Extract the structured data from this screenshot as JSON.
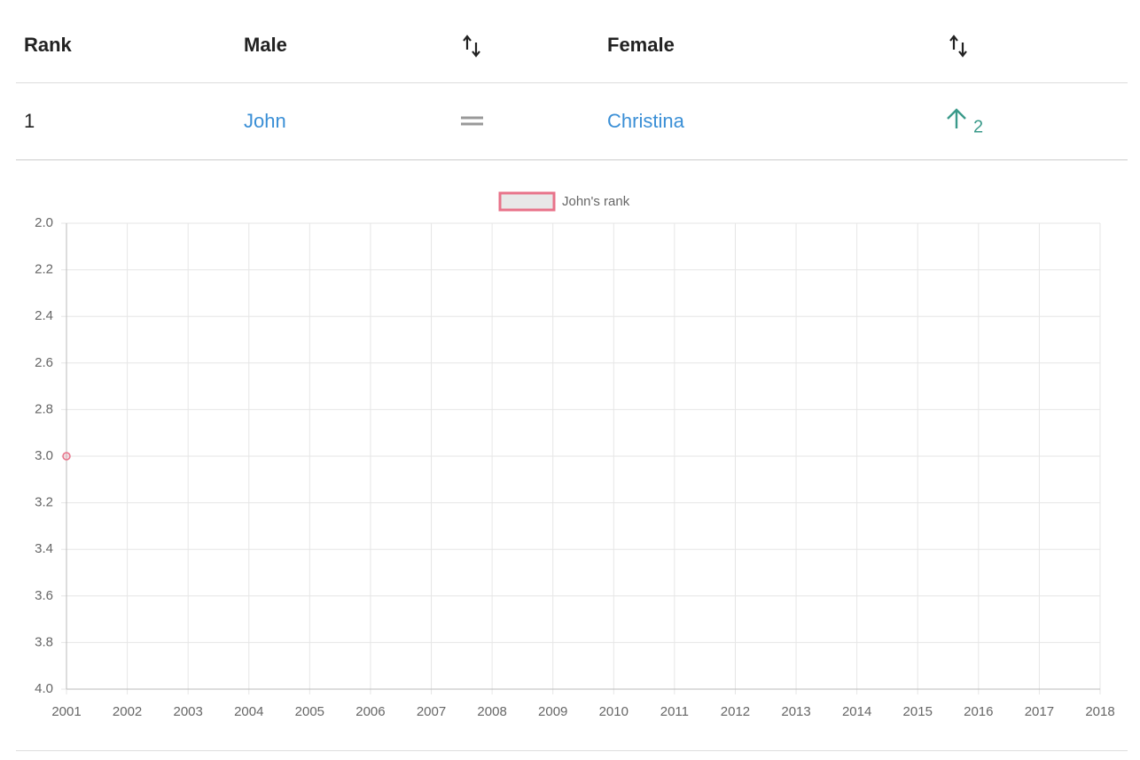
{
  "table": {
    "columns": [
      "Rank",
      "Male",
      "Female"
    ],
    "rows": [
      {
        "rank": "1",
        "male": "John",
        "female": "Christina",
        "female_change": "2"
      }
    ]
  },
  "chart_data": {
    "type": "line",
    "categories": [
      "2001",
      "2002",
      "2003",
      "2004",
      "2005",
      "2006",
      "2007",
      "2008",
      "2009",
      "2010",
      "2011",
      "2012",
      "2013",
      "2014",
      "2015",
      "2016",
      "2017",
      "2018"
    ],
    "series": [
      {
        "name": "John's rank",
        "color": "#e8738a",
        "values": [
          3,
          null,
          null,
          null,
          null,
          null,
          null,
          null,
          null,
          null,
          null,
          null,
          null,
          null,
          null,
          null,
          null,
          null
        ]
      }
    ],
    "ylim": [
      4,
      2
    ],
    "yticks": [
      {
        "value": 2,
        "label": "2.0"
      },
      2.2,
      2.4,
      2.6,
      2.8,
      {
        "value": 3,
        "label": "3.0"
      },
      3.2,
      3.4,
      3.6,
      3.8,
      {
        "value": 4,
        "label": "4.0"
      }
    ],
    "grid": true,
    "legend": "top"
  }
}
